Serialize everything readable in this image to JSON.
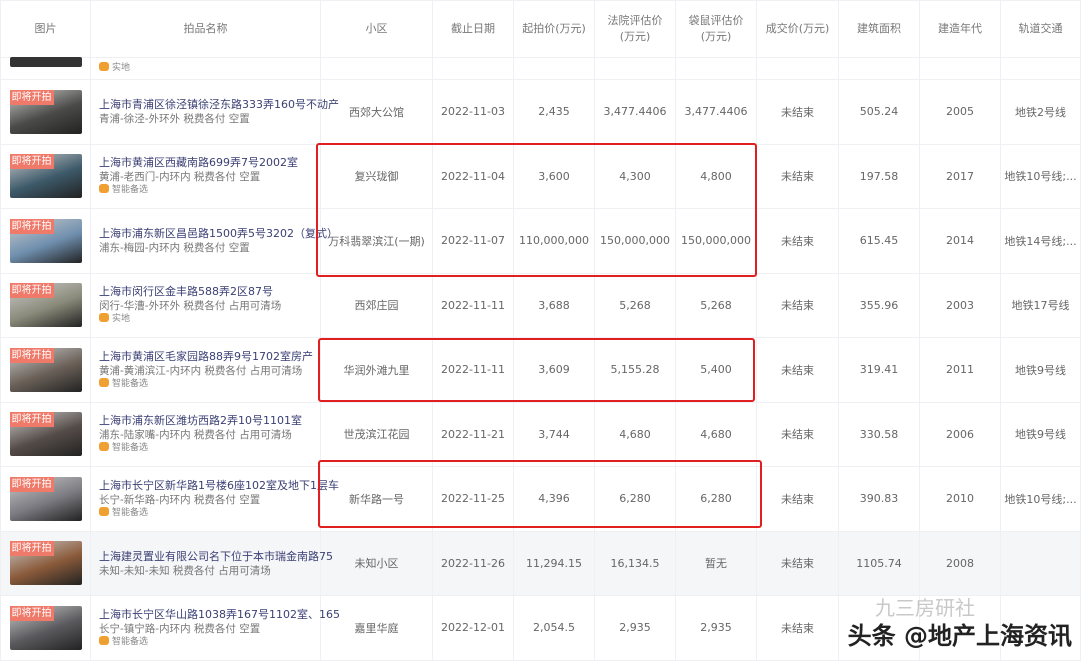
{
  "headers": [
    "图片",
    "拍品名称",
    "小区",
    "截止日期",
    "起拍价(万元)",
    "法院评估价\n(万元)",
    "袋鼠评估价\n(万元)",
    "成交价(万元)",
    "建筑面积",
    "建造年代",
    "轨道交通"
  ],
  "badge": "即将开拍",
  "partial_tag": "实地",
  "rows": [
    {
      "title": "上海市青浦区徐泾镇徐泾东路333弄160号不动产",
      "sub": "青浦-徐泾-外环外 税费各付 空置",
      "tag": "",
      "community": "西郊大公馆",
      "date": "2022-11-03",
      "start": "2,435",
      "court": "3,477.4406",
      "kangaroo": "3,477.4406",
      "deal": "未结束",
      "area": "505.24",
      "year": "2005",
      "metro": "地铁2号线",
      "img": "#4a4a48"
    },
    {
      "title": "上海市黄浦区西藏南路699弄7号2002室",
      "sub": "黄浦-老西门-内环内 税费各付 空置",
      "tag": "智能备选",
      "community": "复兴珑御",
      "date": "2022-11-04",
      "start": "3,600",
      "court": "4,300",
      "kangaroo": "4,800",
      "deal": "未结束",
      "area": "197.58",
      "year": "2017",
      "metro": "地铁10号线;...",
      "img": "#3d5a6a"
    },
    {
      "title": "上海市浦东新区昌邑路1500弄5号3202（复式）",
      "sub": "浦东-梅园-内环内 税费各付 空置",
      "tag": "",
      "community": "万科翡翠滨江(一期)",
      "date": "2022-11-07",
      "start": "110,000,000",
      "court": "150,000,000",
      "kangaroo": "150,000,000",
      "deal": "未结束",
      "area": "615.45",
      "year": "2014",
      "metro": "地铁14号线;...",
      "img": "#6f8fae"
    },
    {
      "title": "上海市闵行区金丰路588弄2区87号",
      "sub": "闵行-华漕-外环外 税费各付 占用可清场",
      "tag": "实地",
      "community": "西郊庄园",
      "date": "2022-11-11",
      "start": "3,688",
      "court": "5,268",
      "kangaroo": "5,268",
      "deal": "未结束",
      "area": "355.96",
      "year": "2003",
      "metro": "地铁17号线",
      "img": "#8a8a7a"
    },
    {
      "title": "上海市黄浦区毛家园路88弄9号1702室房产",
      "sub": "黄浦-黄浦滨江-内环内 税费各付 占用可清场",
      "tag": "智能备选",
      "community": "华润外滩九里",
      "date": "2022-11-11",
      "start": "3,609",
      "court": "5,155.28",
      "kangaroo": "5,400",
      "deal": "未结束",
      "area": "319.41",
      "year": "2011",
      "metro": "地铁9号线",
      "img": "#6a6058"
    },
    {
      "title": "上海市浦东新区潍坊西路2弄10号1101室",
      "sub": "浦东-陆家嘴-内环内 税费各付 占用可清场",
      "tag": "智能备选",
      "community": "世茂滨江花园",
      "date": "2022-11-21",
      "start": "3,744",
      "court": "4,680",
      "kangaroo": "4,680",
      "deal": "未结束",
      "area": "330.58",
      "year": "2006",
      "metro": "地铁9号线",
      "img": "#554c48"
    },
    {
      "title": "上海市长宁区新华路1号楼6座102室及地下1层车",
      "sub": "长宁-新华路-内环内 税费各付 空置",
      "tag": "智能备选",
      "community": "新华路一号",
      "date": "2022-11-25",
      "start": "4,396",
      "court": "6,280",
      "kangaroo": "6,280",
      "deal": "未结束",
      "area": "390.83",
      "year": "2010",
      "metro": "地铁10号线;...",
      "img": "#7a7a80"
    },
    {
      "title": "上海建灵置业有限公司名下位于本市瑞金南路75",
      "sub": "未知-未知-未知 税费各付 占用可清场",
      "tag": "",
      "community": "未知小区",
      "date": "2022-11-26",
      "start": "11,294.15",
      "court": "16,134.5",
      "kangaroo": "暂无",
      "deal": "未结束",
      "area": "1105.74",
      "year": "2008",
      "metro": "",
      "img": "#8a5a3a"
    },
    {
      "title": "上海市长宁区华山路1038弄167号1102室、165",
      "sub": "长宁-镇宁路-内环内 税费各付 空置",
      "tag": "智能备选",
      "community": "嘉里华庭",
      "date": "2022-12-01",
      "start": "2,054.5",
      "court": "2,935",
      "kangaroo": "2,935",
      "deal": "未结束",
      "area": "",
      "year": "",
      "metro": "",
      "img": "#5a5a5e"
    }
  ],
  "watermark": {
    "main": "头条 @地产上海资讯",
    "sub": "九三房研社"
  },
  "colors": {
    "highlight": "#e02020",
    "badge": "#f07a6a",
    "title": "#3a3f73"
  }
}
